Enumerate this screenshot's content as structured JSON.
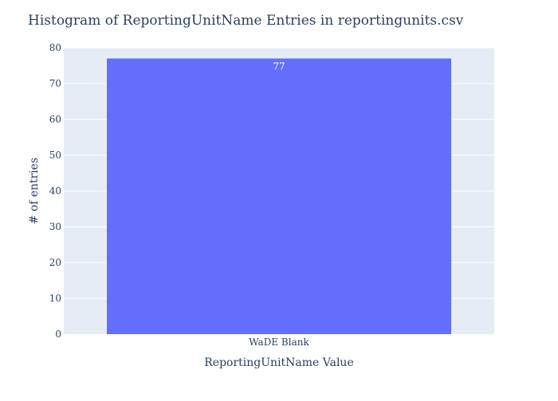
{
  "chart_data": {
    "type": "bar",
    "title": "Histogram of ReportingUnitName Entries in reportingunits.csv",
    "xlabel": "ReportingUnitName Value",
    "ylabel": "# of entries",
    "categories": [
      "WaDE Blank"
    ],
    "values": [
      77
    ],
    "data_labels": [
      "77"
    ],
    "ylim": [
      0,
      80
    ],
    "yticks": [
      0,
      10,
      20,
      30,
      40,
      50,
      60,
      70,
      80
    ],
    "grid": true,
    "legend": "none",
    "colors": {
      "bar": "#636efa",
      "plot_background": "#e5ecf6",
      "grid": "#ffffff",
      "text": "#2a3f5f",
      "data_label": "#ffffff"
    }
  }
}
